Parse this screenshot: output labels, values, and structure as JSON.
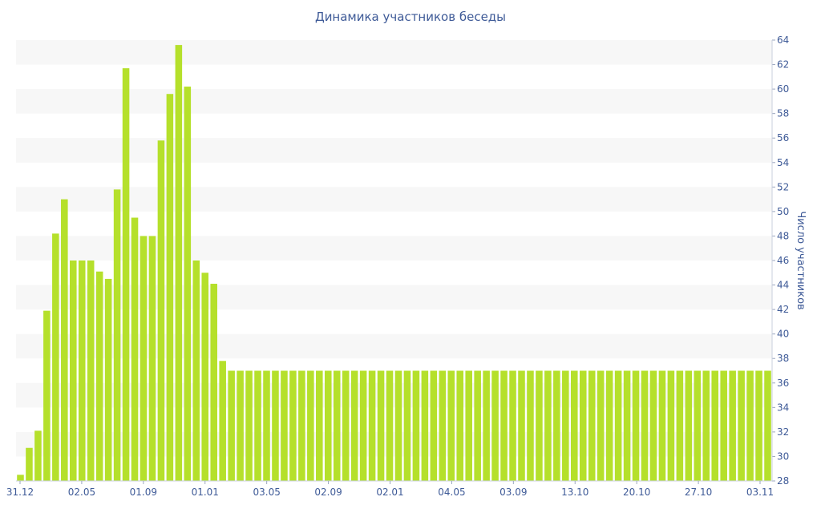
{
  "chart_data": {
    "type": "bar",
    "title": "Динамика участников беседы",
    "ylabel": "Число участников",
    "ylim": [
      28,
      64
    ],
    "y_ticks": [
      28,
      30,
      32,
      34,
      36,
      38,
      40,
      42,
      44,
      46,
      48,
      50,
      52,
      54,
      56,
      58,
      60,
      62,
      64
    ],
    "y_axis_side": "right",
    "grid": "alternating horizontal bands",
    "x_tick_labels": [
      "31.12",
      "02.05",
      "01.09",
      "01.01",
      "03.05",
      "02.09",
      "02.01",
      "04.05",
      "03.09",
      "13.10",
      "20.10",
      "27.10",
      "03.11"
    ],
    "bar_color": "#b5e02b",
    "values": [
      28.5,
      30.7,
      32.1,
      41.9,
      48.2,
      51.0,
      46.0,
      46.0,
      46.0,
      45.1,
      44.5,
      51.8,
      61.7,
      49.5,
      48.0,
      48.0,
      55.8,
      59.6,
      63.6,
      60.2,
      46.0,
      45.0,
      44.1,
      37.8,
      37.0,
      37.0,
      37.0,
      37.0,
      37.0,
      37.0,
      37.0,
      37.0,
      37.0,
      37.0,
      37.0,
      37.0,
      37.0,
      37.0,
      37.0,
      37.0,
      37.0,
      37.0,
      37.0,
      37.0,
      37.0,
      37.0,
      37.0,
      37.0,
      37.0,
      37.0,
      37.0,
      37.0,
      37.0,
      37.0,
      37.0,
      37.0,
      37.0,
      37.0,
      37.0,
      37.0,
      37.0,
      37.0,
      37.0,
      37.0,
      37.0,
      37.0,
      37.0,
      37.0,
      37.0,
      37.0,
      37.0,
      37.0,
      37.0,
      37.0,
      37.0,
      37.0,
      37.0,
      37.0,
      37.0,
      37.0,
      37.0,
      37.0,
      37.0,
      37.0,
      37.0,
      37.0
    ]
  }
}
